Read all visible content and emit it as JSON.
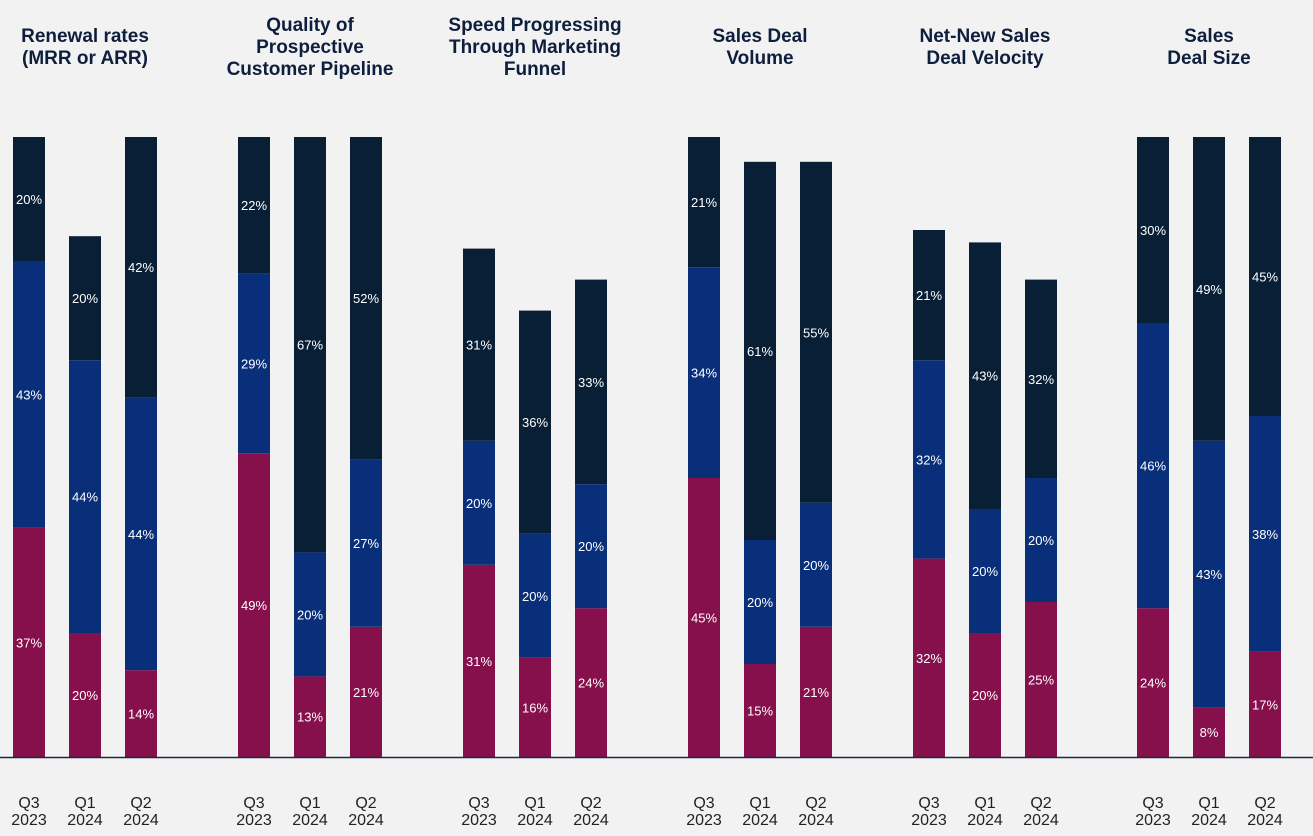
{
  "chart_data": {
    "type": "bar",
    "stacked": true,
    "normalized": true,
    "colors": {
      "bottom": "#86104b",
      "middle": "#0a2f7a",
      "top": "#091f36",
      "baseline": "#1b2a44"
    },
    "groups": [
      {
        "title": [
          "Renewal rates",
          "(MRR or ARR)"
        ],
        "bars": [
          {
            "label": [
              "Q3",
              "2023"
            ],
            "values": [
              37,
              43,
              20
            ]
          },
          {
            "label": [
              "Q1",
              "2024"
            ],
            "values": [
              20,
              44,
              20
            ]
          },
          {
            "label": [
              "Q2",
              "2024"
            ],
            "values": [
              14,
              44,
              42
            ]
          }
        ]
      },
      {
        "title": [
          "Quality of",
          "Prospective",
          "Customer Pipeline"
        ],
        "bars": [
          {
            "label": [
              "Q3",
              "2023"
            ],
            "values": [
              49,
              29,
              22
            ]
          },
          {
            "label": [
              "Q1",
              "2024"
            ],
            "values": [
              13,
              20,
              67
            ]
          },
          {
            "label": [
              "Q2",
              "2024"
            ],
            "values": [
              21,
              27,
              52
            ]
          }
        ]
      },
      {
        "title": [
          "Speed Progressing",
          "Through Marketing",
          "Funnel"
        ],
        "bars": [
          {
            "label": [
              "Q3",
              "2023"
            ],
            "values": [
              31,
              20,
              31
            ]
          },
          {
            "label": [
              "Q1",
              "2024"
            ],
            "values": [
              16,
              20,
              36
            ]
          },
          {
            "label": [
              "Q2",
              "2024"
            ],
            "values": [
              24,
              20,
              33
            ]
          }
        ]
      },
      {
        "title": [
          "Sales Deal",
          "Volume"
        ],
        "bars": [
          {
            "label": [
              "Q3",
              "2023"
            ],
            "values": [
              45,
              34,
              21
            ]
          },
          {
            "label": [
              "Q1",
              "2024"
            ],
            "values": [
              15,
              20,
              61
            ]
          },
          {
            "label": [
              "Q2",
              "2024"
            ],
            "values": [
              21,
              20,
              55
            ]
          }
        ]
      },
      {
        "title": [
          "Net-New Sales",
          "Deal Velocity"
        ],
        "bars": [
          {
            "label": [
              "Q3",
              "2023"
            ],
            "values": [
              32,
              32,
              21
            ]
          },
          {
            "label": [
              "Q1",
              "2024"
            ],
            "values": [
              20,
              20,
              43
            ]
          },
          {
            "label": [
              "Q2",
              "2024"
            ],
            "values": [
              25,
              20,
              32
            ]
          }
        ]
      },
      {
        "title": [
          "Sales",
          "Deal Size"
        ],
        "bars": [
          {
            "label": [
              "Q3",
              "2023"
            ],
            "values": [
              24,
              46,
              30
            ]
          },
          {
            "label": [
              "Q1",
              "2024"
            ],
            "values": [
              8,
              43,
              49
            ]
          },
          {
            "label": [
              "Q2",
              "2024"
            ],
            "values": [
              17,
              38,
              45
            ]
          }
        ]
      }
    ]
  }
}
